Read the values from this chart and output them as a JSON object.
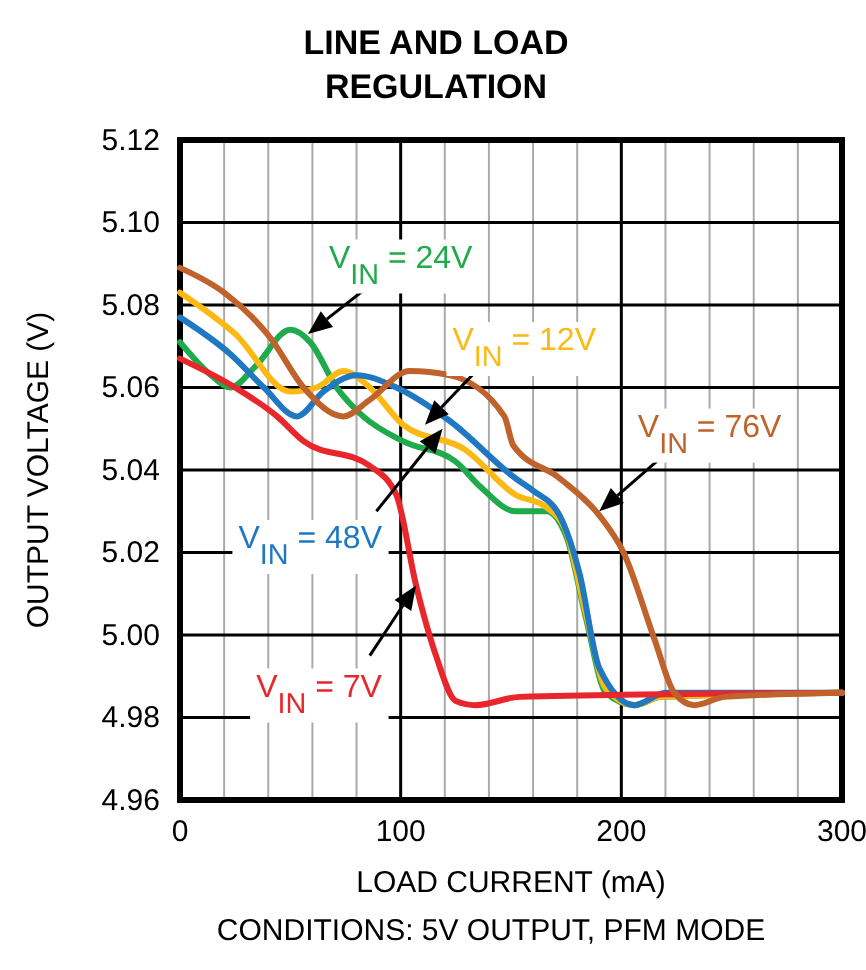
{
  "chart_data": {
    "type": "line",
    "title": "LINE AND LOAD REGULATION",
    "xlabel": "LOAD CURRENT (mA)",
    "ylabel": "OUTPUT VOLTAGE (V)",
    "annotations": [
      "CONDITIONS: 5V OUTPUT, PFM MODE"
    ],
    "xlim": [
      0,
      300
    ],
    "xticks": [
      0,
      100,
      200,
      300
    ],
    "ylim": [
      4.96,
      5.12
    ],
    "yticks": [
      4.96,
      4.98,
      {
        "value": 5.0,
        "label": "5.00"
      },
      5.02,
      5.04,
      5.06,
      5.08,
      {
        "value": 5.1,
        "label": "5.10"
      },
      5.12
    ],
    "grid": true,
    "marker": "none",
    "line_style": "solid",
    "series": [
      {
        "name": "V$_{IN}$ = 24V",
        "color": "#1faa4b",
        "x": [
          0,
          14,
          23,
          34,
          50,
          59,
          71,
          83,
          101,
          125,
          136,
          152,
          166,
          175,
          184,
          193,
          206,
          218,
          300
        ],
        "values": [
          5.071,
          5.063,
          5.06,
          5.065,
          5.074,
          5.071,
          5.06,
          5.053,
          5.047,
          5.042,
          5.036,
          5.03,
          5.03,
          5.024,
          5.004,
          4.986,
          4.983,
          4.985,
          4.986
        ]
      },
      {
        "name": "V$_{IN}$ = 12V",
        "color": "#fdb913",
        "x": [
          0,
          25,
          50,
          62,
          74,
          86,
          101,
          129,
          152,
          166,
          175,
          184,
          193,
          206,
          218,
          300
        ],
        "values": [
          5.083,
          5.073,
          5.059,
          5.06,
          5.064,
          5.06,
          5.051,
          5.045,
          5.034,
          5.031,
          5.025,
          5.005,
          4.987,
          4.983,
          4.985,
          4.986
        ]
      },
      {
        "name": "V$_{IN}$ = 48V",
        "color": "#1f78c1",
        "x": [
          0,
          23,
          38,
          53,
          65,
          80,
          98,
          122,
          152,
          160,
          172,
          181,
          190,
          206,
          220,
          300
        ],
        "values": [
          5.077,
          5.068,
          5.06,
          5.053,
          5.059,
          5.063,
          5.06,
          5.052,
          5.038,
          5.035,
          5.029,
          5.015,
          4.992,
          4.983,
          4.986,
          4.986
        ]
      },
      {
        "name": "V$_{IN}$ = 7V",
        "color": "#e8262b",
        "x": [
          0,
          25,
          44,
          56,
          86,
          98,
          107,
          116,
          125,
          134,
          154,
          300
        ],
        "values": [
          5.067,
          5.06,
          5.053,
          5.047,
          5.041,
          5.034,
          5.012,
          4.995,
          4.984,
          4.983,
          4.985,
          4.986
        ]
      },
      {
        "name": "V$_{IN}$ = 76V",
        "color": "#c0622b",
        "x": [
          0,
          20,
          41,
          56,
          74,
          86,
          104,
          122,
          147,
          151,
          172,
          190,
          201,
          215,
          224,
          233,
          247,
          300
        ],
        "values": [
          5.089,
          5.083,
          5.072,
          5.06,
          5.053,
          5.057,
          5.064,
          5.063,
          5.053,
          5.046,
          5.038,
          5.029,
          5.02,
          4.999,
          4.986,
          4.983,
          4.985,
          4.986
        ]
      }
    ]
  }
}
